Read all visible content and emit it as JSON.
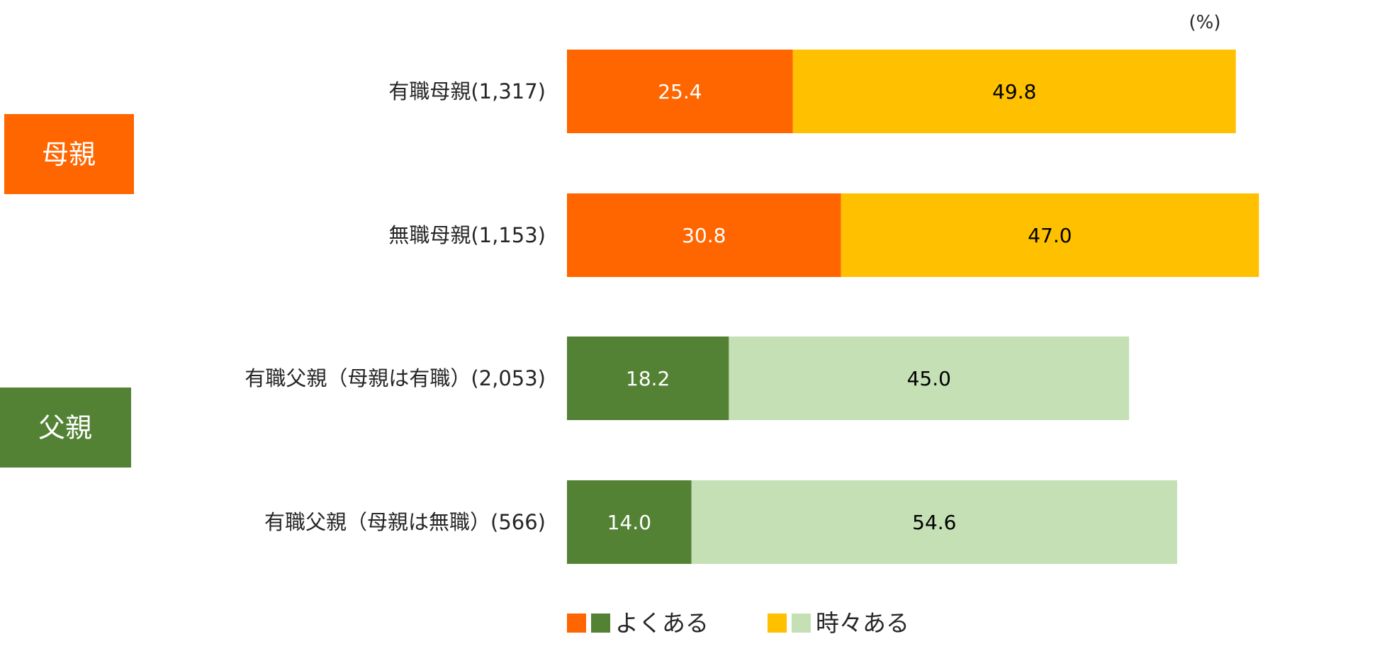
{
  "chart_data": {
    "type": "bar",
    "orientation": "horizontal",
    "stacked": true,
    "unit": "(%)",
    "groups": [
      {
        "label": "母親",
        "color": "#ff6600"
      },
      {
        "label": "父親",
        "color": "#548235"
      }
    ],
    "categories": [
      "有職母親(1,317)",
      "無職母親(1,153)",
      "有職父親（母親は有職）(2,053)",
      "有職父親（母親は無職）(566)"
    ],
    "category_groups": [
      0,
      0,
      1,
      1
    ],
    "series": [
      {
        "name": "よくある",
        "values": [
          25.4,
          30.8,
          18.2,
          14.0
        ],
        "colors": [
          "#ff6600",
          "#ff6600",
          "#548235",
          "#548235"
        ],
        "label_color": "#ffffff"
      },
      {
        "name": "時々ある",
        "values": [
          49.8,
          47.0,
          45.0,
          54.6
        ],
        "colors": [
          "#ffc000",
          "#ffc000",
          "#c5e0b4",
          "#c5e0b4"
        ],
        "label_color": "#000000"
      }
    ],
    "legend": {
      "position": "bottom"
    },
    "grid": false
  }
}
